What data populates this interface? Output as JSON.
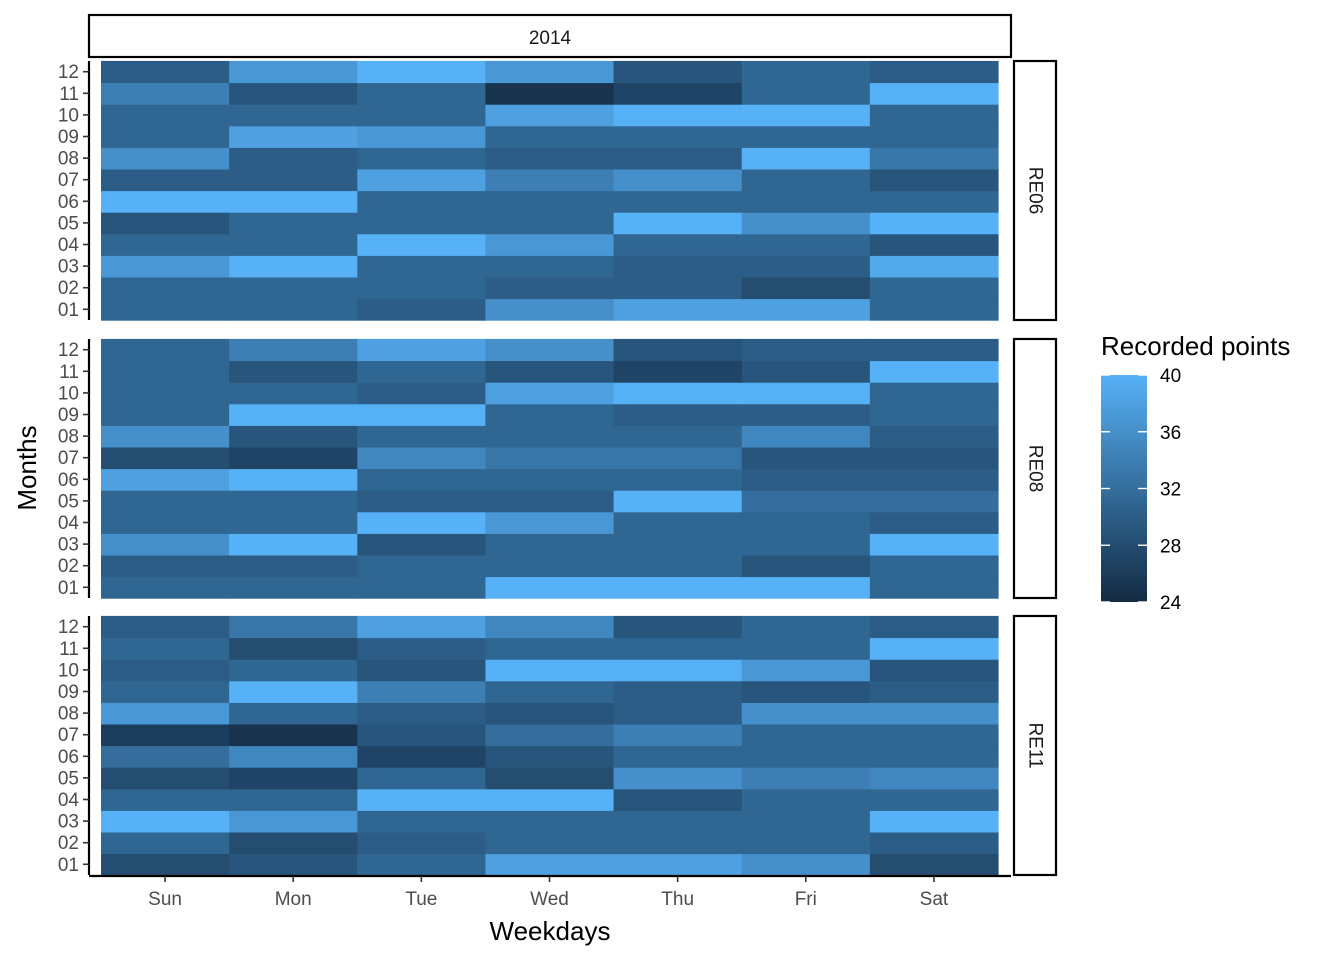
{
  "chart_data": {
    "type": "heatmap",
    "title": "",
    "xlabel": "Weekdays",
    "ylabel": "Months",
    "top_strip": "2014",
    "weekdays": [
      "Sun",
      "Mon",
      "Tue",
      "Wed",
      "Thu",
      "Fri",
      "Sat"
    ],
    "months": [
      "01",
      "02",
      "03",
      "04",
      "05",
      "06",
      "07",
      "08",
      "09",
      "10",
      "11",
      "12"
    ],
    "legend": {
      "title": "Recorded points",
      "ticks": [
        "40",
        "36",
        "32",
        "28",
        "24"
      ],
      "range": [
        24,
        40
      ],
      "low_color": "#132b43",
      "high_color": "#56b1f7",
      "placement": "right"
    },
    "panels": [
      {
        "label": "RE06",
        "rows": [
          [
            31,
            31,
            30,
            36,
            38,
            38,
            31
          ],
          [
            31,
            31,
            31,
            30,
            30,
            28,
            31
          ],
          [
            37,
            40,
            31,
            31,
            30,
            30,
            39
          ],
          [
            31,
            31,
            40,
            37,
            31,
            31,
            29
          ],
          [
            29,
            31,
            31,
            31,
            40,
            36,
            40
          ],
          [
            40,
            40,
            31,
            31,
            31,
            31,
            31
          ],
          [
            30,
            30,
            38,
            34,
            36,
            31,
            29
          ],
          [
            36,
            30,
            31,
            30,
            30,
            40,
            33
          ],
          [
            31,
            38,
            37,
            31,
            31,
            31,
            31
          ],
          [
            31,
            31,
            31,
            38,
            40,
            40,
            31
          ],
          [
            34,
            29,
            31,
            25,
            27,
            31,
            40
          ],
          [
            30,
            37,
            40,
            37,
            29,
            31,
            30
          ]
        ]
      },
      {
        "label": "RE08",
        "rows": [
          [
            31,
            31,
            31,
            40,
            40,
            40,
            31
          ],
          [
            30,
            30,
            31,
            31,
            31,
            29,
            31
          ],
          [
            36,
            40,
            29,
            31,
            31,
            31,
            40
          ],
          [
            31,
            31,
            40,
            37,
            31,
            31,
            30
          ],
          [
            31,
            31,
            30,
            30,
            40,
            32,
            32
          ],
          [
            38,
            40,
            31,
            31,
            31,
            30,
            30
          ],
          [
            28,
            27,
            35,
            33,
            33,
            29,
            29
          ],
          [
            36,
            29,
            31,
            31,
            31,
            35,
            30
          ],
          [
            31,
            40,
            40,
            31,
            30,
            30,
            31
          ],
          [
            31,
            31,
            30,
            38,
            40,
            40,
            31
          ],
          [
            31,
            29,
            31,
            29,
            27,
            29,
            40
          ],
          [
            31,
            34,
            38,
            36,
            29,
            30,
            30
          ]
        ]
      },
      {
        "label": "RE11",
        "rows": [
          [
            28,
            29,
            31,
            38,
            38,
            36,
            28
          ],
          [
            31,
            28,
            30,
            31,
            31,
            31,
            30
          ],
          [
            40,
            37,
            31,
            31,
            31,
            31,
            40
          ],
          [
            31,
            31,
            40,
            40,
            29,
            31,
            31
          ],
          [
            28,
            27,
            31,
            28,
            36,
            34,
            35
          ],
          [
            32,
            35,
            27,
            29,
            31,
            31,
            31
          ],
          [
            26,
            25,
            29,
            32,
            34,
            31,
            31
          ],
          [
            37,
            31,
            30,
            29,
            30,
            36,
            36
          ],
          [
            31,
            40,
            34,
            31,
            30,
            29,
            30
          ],
          [
            30,
            31,
            29,
            40,
            40,
            37,
            29
          ],
          [
            31,
            28,
            30,
            31,
            31,
            31,
            40
          ],
          [
            30,
            33,
            38,
            35,
            29,
            31,
            30
          ]
        ]
      }
    ]
  }
}
